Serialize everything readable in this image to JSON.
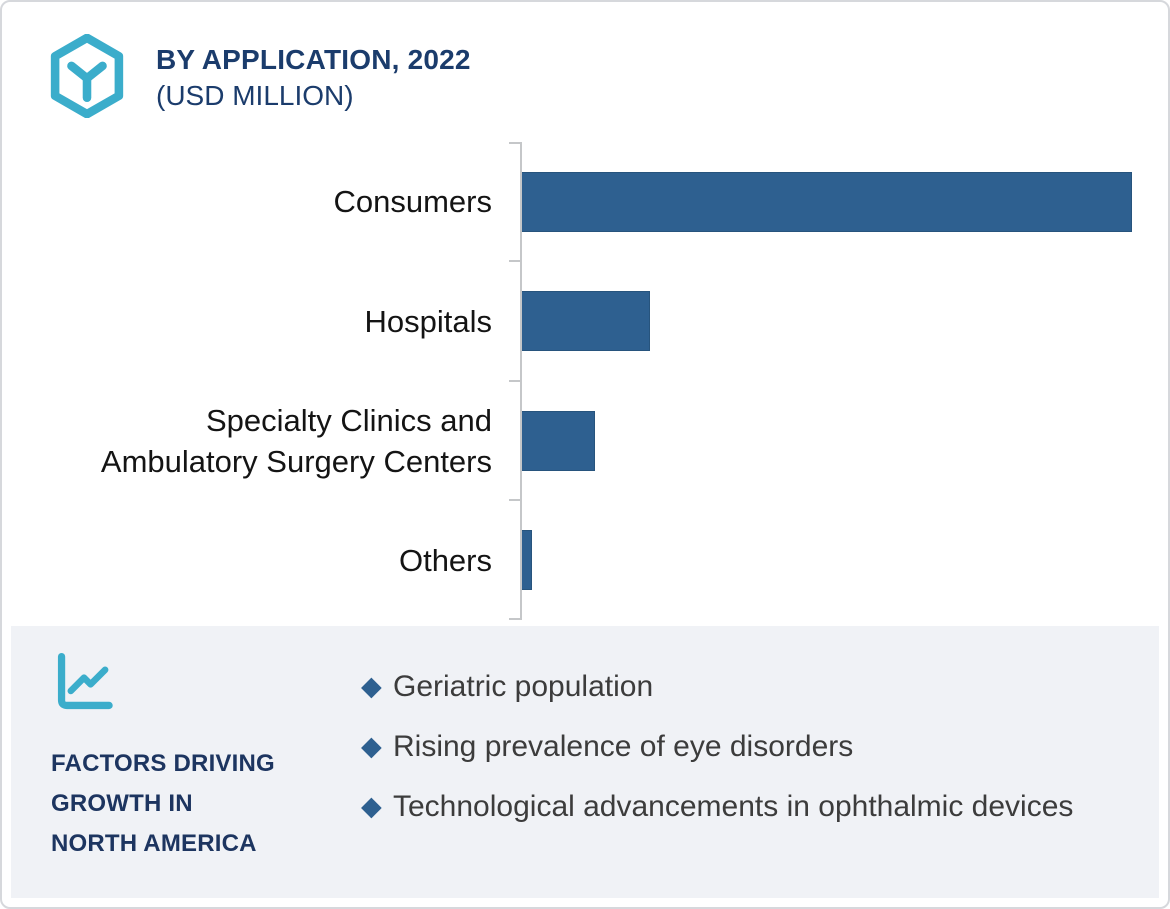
{
  "header": {
    "title": "BY APPLICATION, 2022",
    "subtitle": "(USD MILLION)",
    "brand_icon": "hexagon-y-icon",
    "accent_teal": "#3badcb",
    "title_color": "#1b3c6c"
  },
  "chart_data": {
    "type": "bar",
    "orientation": "horizontal",
    "title": "BY APPLICATION, 2022",
    "subtitle": "(USD MILLION)",
    "categories": [
      "Consumers",
      "Hospitals",
      "Specialty Clinics and\nAmbulatory Surgery Centers",
      "Others"
    ],
    "values": [
      100,
      21,
      12,
      1.6
    ],
    "value_note": "relative percent of largest bar; no numeric axis labels or gridlines shown",
    "xlabel": "",
    "ylabel": "",
    "grid": false,
    "legend": false,
    "bar_color": "#2e6090",
    "axis_color": "#c5c7c9"
  },
  "factors": {
    "icon": "line-chart-icon",
    "heading_lines": [
      "FACTORS DRIVING",
      "GROWTH IN",
      "NORTH AMERICA"
    ],
    "heading_color": "#1d3560",
    "panel_bg": "#f0f2f6",
    "bullet_glyph": "◆",
    "bullet_color": "#2e6090",
    "items": [
      "Geriatric population",
      "Rising prevalence of eye disorders",
      "Technological advancements in ophthalmic devices"
    ]
  }
}
